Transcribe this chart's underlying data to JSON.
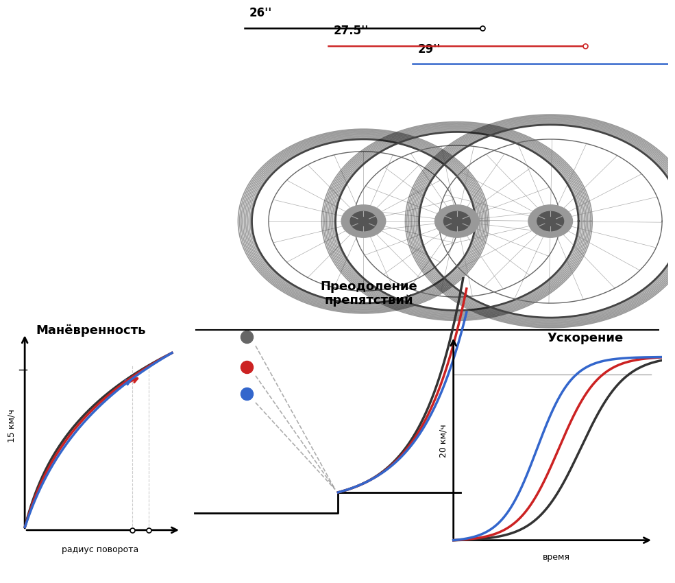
{
  "title_maneuver": "Манёвренность",
  "title_obstacle": "Преодоление\nпрепятствий",
  "title_accel": "Ускорение",
  "ylabel_maneuver": "15 км/ч",
  "ylabel_accel": "20 км/ч",
  "xlabel_maneuver": "радиус поворота",
  "xlabel_accel": "время",
  "wheel_sizes": [
    "26''",
    "27.5''",
    "29''"
  ],
  "color_26": "#333333",
  "color_275": "#cc2222",
  "color_29": "#3366cc",
  "bg_color": "#ffffff"
}
